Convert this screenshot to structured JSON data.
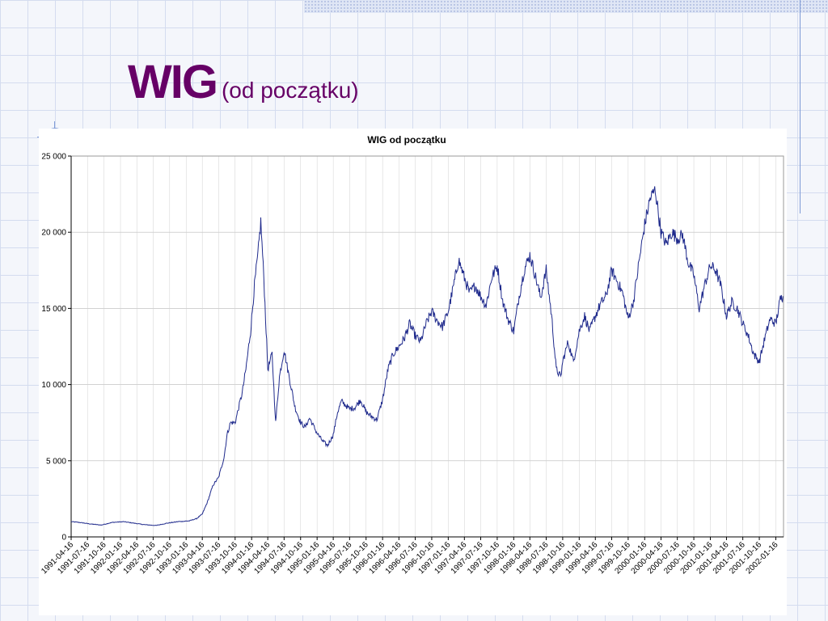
{
  "slide": {
    "title_main": "WIG",
    "title_sub": "(od początku)"
  },
  "chart_data": {
    "type": "line",
    "title": "WIG od początku",
    "xlabel": "",
    "ylabel": "",
    "ylim": [
      0,
      25000
    ],
    "yticks": [
      0,
      5000,
      10000,
      15000,
      20000,
      25000
    ],
    "ytick_labels": [
      "0",
      "5 000",
      "10 000",
      "15 000",
      "20 000",
      "25 000"
    ],
    "x_tick_labels": [
      "1991-04-16",
      "1991-07-16",
      "1991-10-16",
      "1992-01-16",
      "1992-04-16",
      "1992-07-16",
      "1992-10-16",
      "1993-01-16",
      "1993-04-16",
      "1993-07-16",
      "1993-10-16",
      "1994-01-16",
      "1994-04-16",
      "1994-07-16",
      "1994-10-16",
      "1995-01-16",
      "1995-04-16",
      "1995-07-16",
      "1995-10-16",
      "1996-01-16",
      "1996-04-16",
      "1996-07-16",
      "1996-10-16",
      "1997-01-16",
      "1997-04-16",
      "1997-07-16",
      "1997-10-16",
      "1998-01-16",
      "1998-04-16",
      "1998-07-16",
      "1998-10-16",
      "1999-01-16",
      "1999-04-16",
      "1999-07-16",
      "1999-10-16",
      "2000-01-16",
      "2000-04-16",
      "2000-07-16",
      "2000-10-16",
      "2001-01-16",
      "2001-04-16",
      "2001-07-16",
      "2001-10-16",
      "2002-01-16"
    ],
    "grid": true,
    "legend": "none",
    "line_color": "#1f2a8c",
    "series": [
      {
        "points": [
          [
            "1991-04-16",
            1000
          ],
          [
            "1991-06-01",
            950
          ],
          [
            "1991-08-01",
            850
          ],
          [
            "1991-10-01",
            780
          ],
          [
            "1991-12-01",
            950
          ],
          [
            "1992-02-01",
            1000
          ],
          [
            "1992-04-01",
            900
          ],
          [
            "1992-06-01",
            800
          ],
          [
            "1992-08-01",
            750
          ],
          [
            "1992-10-01",
            900
          ],
          [
            "1992-12-01",
            1000
          ],
          [
            "1993-02-01",
            1050
          ],
          [
            "1993-03-15",
            1200
          ],
          [
            "1993-04-16",
            1500
          ],
          [
            "1993-05-15",
            2300
          ],
          [
            "1993-06-15",
            3400
          ],
          [
            "1993-07-16",
            3900
          ],
          [
            "1993-08-15",
            5200
          ],
          [
            "1993-09-01",
            6700
          ],
          [
            "1993-09-20",
            7500
          ],
          [
            "1993-10-16",
            7500
          ],
          [
            "1993-11-05",
            8500
          ],
          [
            "1993-11-25",
            9500
          ],
          [
            "1993-12-15",
            11000
          ],
          [
            "1994-01-10",
            13500
          ],
          [
            "1994-02-01",
            16500
          ],
          [
            "1994-02-20",
            18500
          ],
          [
            "1994-03-08",
            20700
          ],
          [
            "1994-03-25",
            17000
          ],
          [
            "1994-04-16",
            11000
          ],
          [
            "1994-05-10",
            12000
          ],
          [
            "1994-05-30",
            7500
          ],
          [
            "1994-06-20",
            10500
          ],
          [
            "1994-07-16",
            12300
          ],
          [
            "1994-08-05",
            11000
          ],
          [
            "1994-08-25",
            9800
          ],
          [
            "1994-09-15",
            8500
          ],
          [
            "1994-10-16",
            7500
          ],
          [
            "1994-11-10",
            7200
          ],
          [
            "1994-12-05",
            7800
          ],
          [
            "1995-01-16",
            6800
          ],
          [
            "1995-02-15",
            6300
          ],
          [
            "1995-03-15",
            6000
          ],
          [
            "1995-04-16",
            6700
          ],
          [
            "1995-05-10",
            8200
          ],
          [
            "1995-06-01",
            8900
          ],
          [
            "1995-07-16",
            8400
          ],
          [
            "1995-08-15",
            8500
          ],
          [
            "1995-09-15",
            9000
          ],
          [
            "1995-10-16",
            8200
          ],
          [
            "1995-11-15",
            7900
          ],
          [
            "1995-12-15",
            7700
          ],
          [
            "1996-01-16",
            9000
          ],
          [
            "1996-02-15",
            11000
          ],
          [
            "1996-03-15",
            12000
          ],
          [
            "1996-04-16",
            12500
          ],
          [
            "1996-05-15",
            13000
          ],
          [
            "1996-06-15",
            14000
          ],
          [
            "1996-07-16",
            13200
          ],
          [
            "1996-08-15",
            12800
          ],
          [
            "1996-09-15",
            14000
          ],
          [
            "1996-10-16",
            14800
          ],
          [
            "1996-11-15",
            14200
          ],
          [
            "1996-12-15",
            13800
          ],
          [
            "1997-01-16",
            14800
          ],
          [
            "1997-02-15",
            16500
          ],
          [
            "1997-03-15",
            18200
          ],
          [
            "1997-04-16",
            17000
          ],
          [
            "1997-05-15",
            16000
          ],
          [
            "1997-06-15",
            16500
          ],
          [
            "1997-07-16",
            15800
          ],
          [
            "1997-08-15",
            15200
          ],
          [
            "1997-09-15",
            17000
          ],
          [
            "1997-10-16",
            17800
          ],
          [
            "1997-11-15",
            15500
          ],
          [
            "1997-12-15",
            14300
          ],
          [
            "1998-01-16",
            13500
          ],
          [
            "1998-02-15",
            15800
          ],
          [
            "1998-03-15",
            17500
          ],
          [
            "1998-04-16",
            18500
          ],
          [
            "1998-05-15",
            17200
          ],
          [
            "1998-06-15",
            15700
          ],
          [
            "1998-07-16",
            17500
          ],
          [
            "1998-08-15",
            14500
          ],
          [
            "1998-09-10",
            11000
          ],
          [
            "1998-10-05",
            10500
          ],
          [
            "1998-10-16",
            11500
          ],
          [
            "1998-11-15",
            12800
          ],
          [
            "1998-12-15",
            11500
          ],
          [
            "1999-01-16",
            13500
          ],
          [
            "1999-02-15",
            14500
          ],
          [
            "1999-03-15",
            13500
          ],
          [
            "1999-04-16",
            14500
          ],
          [
            "1999-05-15",
            15300
          ],
          [
            "1999-06-15",
            15800
          ],
          [
            "1999-07-16",
            17500
          ],
          [
            "1999-08-15",
            16800
          ],
          [
            "1999-09-15",
            16000
          ],
          [
            "1999-10-16",
            14300
          ],
          [
            "1999-11-15",
            15500
          ],
          [
            "1999-12-15",
            18000
          ],
          [
            "2000-01-16",
            20500
          ],
          [
            "2000-02-15",
            22200
          ],
          [
            "2000-03-15",
            22800
          ],
          [
            "2000-04-16",
            20000
          ],
          [
            "2000-05-15",
            19200
          ],
          [
            "2000-06-15",
            20000
          ],
          [
            "2000-07-16",
            19600
          ],
          [
            "2000-08-15",
            19800
          ],
          [
            "2000-09-15",
            18000
          ],
          [
            "2000-10-16",
            17200
          ],
          [
            "2000-11-15",
            15000
          ],
          [
            "2000-12-15",
            16500
          ],
          [
            "2001-01-16",
            17800
          ],
          [
            "2001-02-15",
            17500
          ],
          [
            "2001-03-15",
            16500
          ],
          [
            "2001-04-16",
            14500
          ],
          [
            "2001-05-15",
            15400
          ],
          [
            "2001-06-15",
            15000
          ],
          [
            "2001-07-16",
            14000
          ],
          [
            "2001-08-15",
            13200
          ],
          [
            "2001-09-15",
            12000
          ],
          [
            "2001-10-16",
            11500
          ],
          [
            "2001-11-15",
            13000
          ],
          [
            "2001-12-15",
            14300
          ],
          [
            "2002-01-16",
            14000
          ],
          [
            "2002-02-10",
            15600
          ],
          [
            "2002-02-25",
            15800
          ]
        ]
      }
    ]
  }
}
